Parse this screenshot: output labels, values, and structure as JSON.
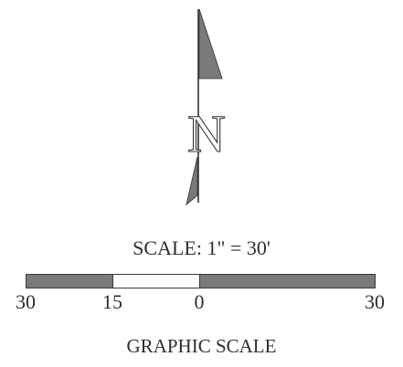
{
  "north_arrow": {
    "letter": "N"
  },
  "scale": {
    "title": "SCALE:  1\" = 30'",
    "ticks": [
      "30",
      "15",
      "0",
      "30"
    ],
    "label": "GRAPHIC SCALE"
  },
  "colors": {
    "bar_dark": "#7a7a7a",
    "bar_light": "#ffffff",
    "arrow_fill": "#7a7a7a",
    "ink": "#2e2e2e"
  }
}
